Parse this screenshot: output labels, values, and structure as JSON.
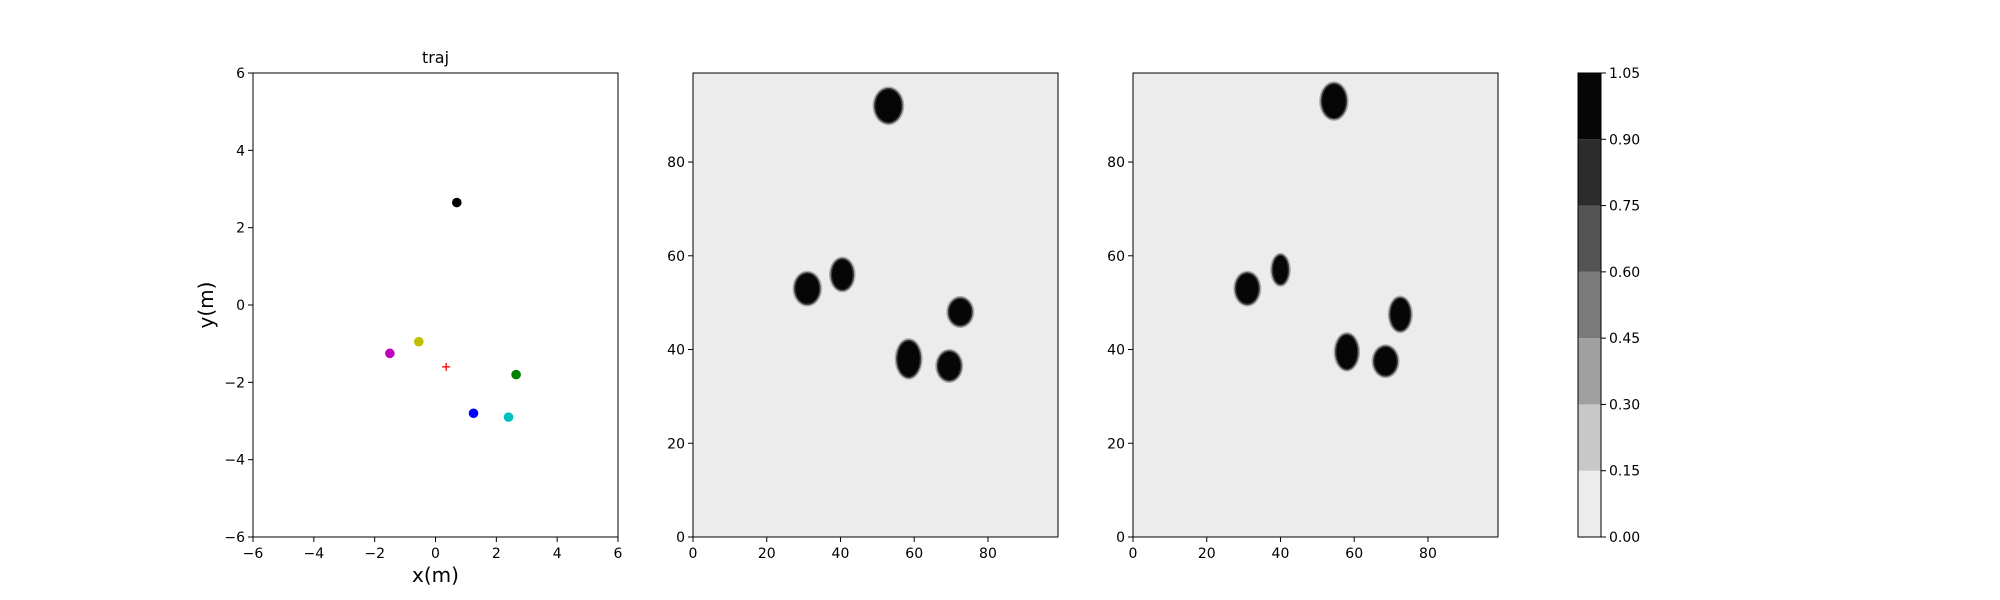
{
  "chart_data": [
    {
      "type": "scatter",
      "title": "traj",
      "xlabel": "x(m)",
      "ylabel": "y(m)",
      "xlim": [
        -6,
        6
      ],
      "ylim": [
        -6,
        6
      ],
      "xticks": [
        -6,
        -4,
        -2,
        0,
        2,
        4,
        6
      ],
      "yticks": [
        -6,
        -4,
        -2,
        0,
        2,
        4,
        6
      ],
      "grid": false,
      "points": [
        {
          "x": 0.7,
          "y": 2.65,
          "color": "#000000",
          "marker": "circle"
        },
        {
          "x": -0.55,
          "y": -0.95,
          "color": "#bfbf00",
          "marker": "circle"
        },
        {
          "x": -1.5,
          "y": -1.25,
          "color": "#bf00bf",
          "marker": "circle"
        },
        {
          "x": 2.65,
          "y": -1.8,
          "color": "#008000",
          "marker": "circle"
        },
        {
          "x": 1.25,
          "y": -2.8,
          "color": "#0000ff",
          "marker": "circle"
        },
        {
          "x": 2.4,
          "y": -2.9,
          "color": "#00bfbf",
          "marker": "circle"
        },
        {
          "x": 0.35,
          "y": -1.6,
          "color": "#ff0000",
          "marker": "plus"
        }
      ]
    },
    {
      "type": "heatmap",
      "title": "",
      "xlabel": "",
      "ylabel": "",
      "xlim": [
        0,
        99
      ],
      "ylim": [
        0,
        99
      ],
      "xticks": [
        0,
        20,
        40,
        60,
        80
      ],
      "yticks": [
        0,
        20,
        40,
        60,
        80
      ],
      "background_value": 0.05,
      "blobs": [
        {
          "x": 53,
          "y": 92,
          "rx": 3.5,
          "ry": 3.5,
          "value": 1.0
        },
        {
          "x": 31,
          "y": 53,
          "rx": 3.2,
          "ry": 3.2,
          "value": 1.0
        },
        {
          "x": 40.5,
          "y": 56,
          "rx": 2.8,
          "ry": 3.2,
          "value": 1.0
        },
        {
          "x": 72.5,
          "y": 48,
          "rx": 3.0,
          "ry": 2.8,
          "value": 1.0
        },
        {
          "x": 58.5,
          "y": 38,
          "rx": 3.0,
          "ry": 3.8,
          "value": 1.0
        },
        {
          "x": 69.5,
          "y": 36.5,
          "rx": 3.0,
          "ry": 3.0,
          "value": 1.0
        }
      ]
    },
    {
      "type": "heatmap",
      "title": "",
      "xlabel": "",
      "ylabel": "",
      "xlim": [
        0,
        99
      ],
      "ylim": [
        0,
        99
      ],
      "xticks": [
        0,
        20,
        40,
        60,
        80
      ],
      "yticks": [
        0,
        20,
        40,
        60,
        80
      ],
      "background_value": 0.05,
      "blobs": [
        {
          "x": 54.5,
          "y": 93,
          "rx": 3.2,
          "ry": 3.6,
          "value": 1.0
        },
        {
          "x": 31,
          "y": 53,
          "rx": 3.0,
          "ry": 3.2,
          "value": 1.0
        },
        {
          "x": 40,
          "y": 57,
          "rx": 2.0,
          "ry": 3.0,
          "value": 1.0
        },
        {
          "x": 72.5,
          "y": 47.5,
          "rx": 2.6,
          "ry": 3.4,
          "value": 1.0
        },
        {
          "x": 58,
          "y": 39.5,
          "rx": 2.8,
          "ry": 3.6,
          "value": 1.0
        },
        {
          "x": 68.5,
          "y": 37.5,
          "rx": 3.0,
          "ry": 3.0,
          "value": 1.0
        }
      ]
    }
  ],
  "colorbar": {
    "levels": [
      0.0,
      0.15,
      0.3,
      0.45,
      0.6,
      0.75,
      0.9,
      1.05
    ],
    "tick_labels": [
      "0.00",
      "0.15",
      "0.30",
      "0.45",
      "0.60",
      "0.75",
      "0.90",
      "1.05"
    ],
    "colors": [
      "#ececec",
      "#c8c8c8",
      "#a0a0a0",
      "#7a7a7a",
      "#545454",
      "#2c2c2c",
      "#060606"
    ]
  }
}
